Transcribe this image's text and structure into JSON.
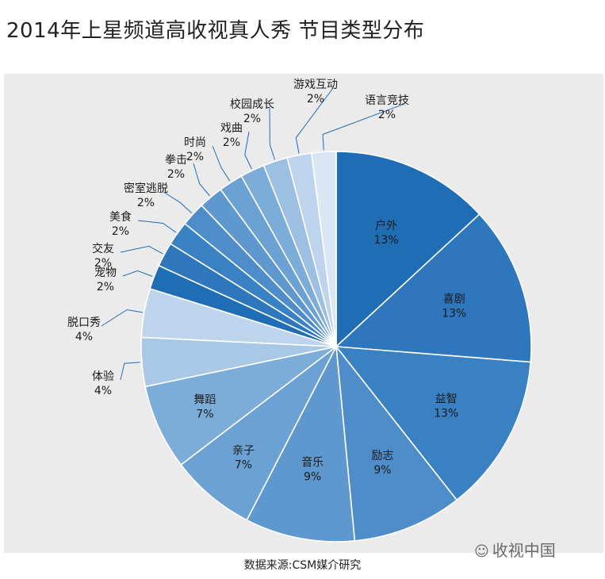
{
  "chart_data": {
    "type": "pie",
    "title": "2014年上星频道高收视真人秀 节目类型分布",
    "slices": [
      {
        "label": "户外",
        "value": 13,
        "text": "13%"
      },
      {
        "label": "喜剧",
        "value": 13,
        "text": "13%"
      },
      {
        "label": "益智",
        "value": 13,
        "text": "13%"
      },
      {
        "label": "励志",
        "value": 9,
        "text": "9%"
      },
      {
        "label": "音乐",
        "value": 9,
        "text": "9%"
      },
      {
        "label": "亲子",
        "value": 7,
        "text": "7%"
      },
      {
        "label": "舞蹈",
        "value": 7,
        "text": "7%"
      },
      {
        "label": "体验",
        "value": 4,
        "text": "4%"
      },
      {
        "label": "脱口秀",
        "value": 4,
        "text": "4%"
      },
      {
        "label": "宠物",
        "value": 2,
        "text": "2%"
      },
      {
        "label": "交友",
        "value": 2,
        "text": "2%"
      },
      {
        "label": "美食",
        "value": 2,
        "text": "2%"
      },
      {
        "label": "密室逃脱",
        "value": 2,
        "text": "2%"
      },
      {
        "label": "拳击",
        "value": 2,
        "text": "2%"
      },
      {
        "label": "时尚",
        "value": 2,
        "text": "2%"
      },
      {
        "label": "戏曲",
        "value": 2,
        "text": "2%"
      },
      {
        "label": "校园成长",
        "value": 2,
        "text": "2%"
      },
      {
        "label": "游戏互动",
        "value": 2,
        "text": "2%"
      },
      {
        "label": "语言竞技",
        "value": 2,
        "text": "2%"
      }
    ],
    "colors": [
      "#1f6db4",
      "#2e77bc",
      "#3a81c3",
      "#4e8dc9",
      "#5e98cf",
      "#6ca2d3",
      "#7cadd8",
      "#a9c8e6",
      "#bdd4ec",
      "#1f6db4",
      "#2e77bc",
      "#3a81c3",
      "#4e8dc9",
      "#5e98cf",
      "#6ca2d3",
      "#7cadd8",
      "#9dbfe2",
      "#bdd4ec",
      "#d9e7f4"
    ],
    "label_color": "#1a1a1a",
    "leader_color": "#1f6db4"
  },
  "footer": {
    "source": "数据来源:CSM媒介研究",
    "watermark": "收视中国"
  }
}
